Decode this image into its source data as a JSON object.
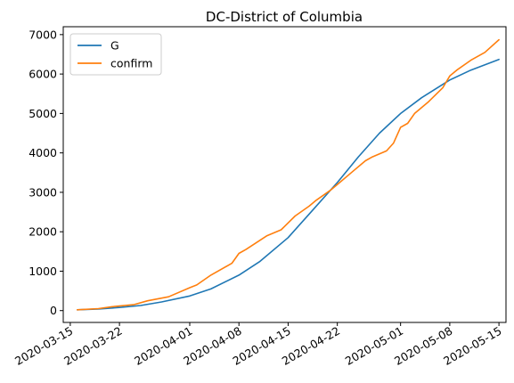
{
  "chart_data": {
    "type": "line",
    "title": "DC-District of Columbia",
    "xlabel": "",
    "ylabel": "",
    "xlim": [
      "2020-03-14",
      "2020-05-16"
    ],
    "ylim": [
      -300,
      7200
    ],
    "grid": false,
    "legend_position": "top-left",
    "x_ticks": [
      "2020-03-15",
      "2020-03-22",
      "2020-04-01",
      "2020-04-08",
      "2020-04-15",
      "2020-04-22",
      "2020-05-01",
      "2020-05-08",
      "2020-05-15"
    ],
    "y_ticks": [
      0,
      1000,
      2000,
      3000,
      4000,
      5000,
      6000,
      7000
    ],
    "series": [
      {
        "name": "G",
        "color": "#1f77b4",
        "x": [
          "2020-03-16",
          "2020-03-19",
          "2020-03-22",
          "2020-03-25",
          "2020-03-28",
          "2020-04-01",
          "2020-04-04",
          "2020-04-08",
          "2020-04-11",
          "2020-04-15",
          "2020-04-18",
          "2020-04-22",
          "2020-04-25",
          "2020-04-28",
          "2020-05-01",
          "2020-05-04",
          "2020-05-08",
          "2020-05-11",
          "2020-05-15"
        ],
        "values": [
          20,
          40,
          80,
          130,
          220,
          370,
          550,
          900,
          1250,
          1850,
          2450,
          3250,
          3900,
          4500,
          5000,
          5400,
          5850,
          6100,
          6370
        ]
      },
      {
        "name": "confirm",
        "color": "#ff7f0e",
        "x": [
          "2020-03-16",
          "2020-03-19",
          "2020-03-21",
          "2020-03-24",
          "2020-03-26",
          "2020-03-29",
          "2020-04-01",
          "2020-04-02",
          "2020-04-04",
          "2020-04-07",
          "2020-04-08",
          "2020-04-09",
          "2020-04-12",
          "2020-04-14",
          "2020-04-16",
          "2020-04-18",
          "2020-04-19",
          "2020-04-21",
          "2020-04-22",
          "2020-04-24",
          "2020-04-26",
          "2020-04-27",
          "2020-04-29",
          "2020-04-30",
          "2020-05-01",
          "2020-05-02",
          "2020-05-03",
          "2020-05-05",
          "2020-05-07",
          "2020-05-08",
          "2020-05-09",
          "2020-05-11",
          "2020-05-13",
          "2020-05-15"
        ],
        "values": [
          20,
          50,
          100,
          150,
          250,
          350,
          580,
          650,
          900,
          1200,
          1450,
          1550,
          1900,
          2050,
          2400,
          2650,
          2800,
          3050,
          3200,
          3500,
          3800,
          3900,
          4050,
          4250,
          4650,
          4750,
          5000,
          5300,
          5650,
          5950,
          6100,
          6350,
          6550,
          6870
        ]
      }
    ]
  }
}
